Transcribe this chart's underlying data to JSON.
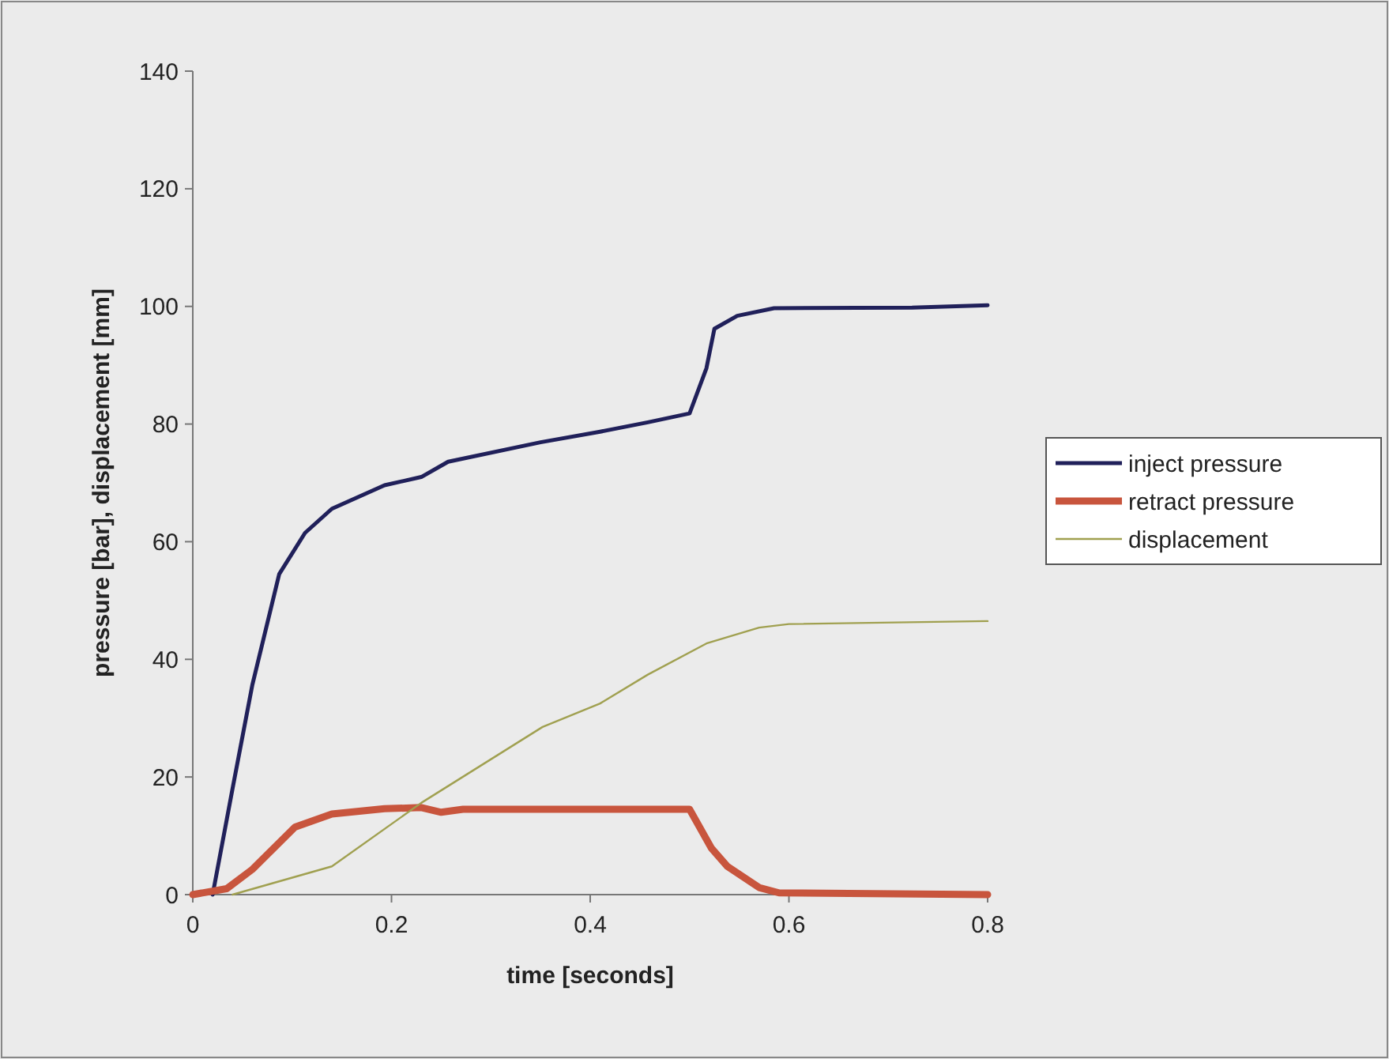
{
  "chart_data": {
    "type": "line",
    "xlabel": "time [seconds]",
    "ylabel": "pressure [bar], displacement [mm]",
    "xlim": [
      0,
      0.8
    ],
    "xticks": [
      0,
      0.2,
      0.4,
      0.6,
      0.8
    ],
    "ylim": [
      0,
      140
    ],
    "yticks": [
      0,
      20,
      40,
      60,
      80,
      100,
      120,
      140
    ],
    "grid": false,
    "legend": "right",
    "marker": "none",
    "line_style": "solid",
    "series": [
      {
        "name": "inject pressure",
        "color": "#20205a",
        "x": [
          0.02,
          0.04,
          0.06,
          0.087,
          0.113,
          0.14,
          0.193,
          0.23,
          0.257,
          0.35,
          0.41,
          0.458,
          0.5,
          0.517,
          0.525,
          0.548,
          0.585,
          0.724,
          0.8
        ],
        "values": [
          0,
          18,
          35.7,
          54.5,
          61.5,
          65.6,
          69.6,
          71,
          73.6,
          76.9,
          78.7,
          80.3,
          81.8,
          89.5,
          96.2,
          98.4,
          99.7,
          99.8,
          100.2
        ]
      },
      {
        "name": "retract pressure",
        "color": "#c8553d",
        "x": [
          0,
          0.034,
          0.06,
          0.103,
          0.14,
          0.193,
          0.23,
          0.25,
          0.272,
          0.5,
          0.522,
          0.538,
          0.57,
          0.59,
          0.8
        ],
        "values": [
          0,
          1,
          4.3,
          11.5,
          13.7,
          14.6,
          14.8,
          14,
          14.5,
          14.5,
          7.9,
          4.8,
          1.2,
          0.3,
          0
        ]
      },
      {
        "name": "displacement",
        "color": "#a0a050",
        "x": [
          0.04,
          0.14,
          0.23,
          0.352,
          0.41,
          0.458,
          0.517,
          0.57,
          0.6,
          0.8
        ],
        "values": [
          0,
          4.8,
          15.6,
          28.5,
          32.5,
          37.4,
          42.7,
          45.4,
          46,
          46.5
        ]
      }
    ]
  }
}
